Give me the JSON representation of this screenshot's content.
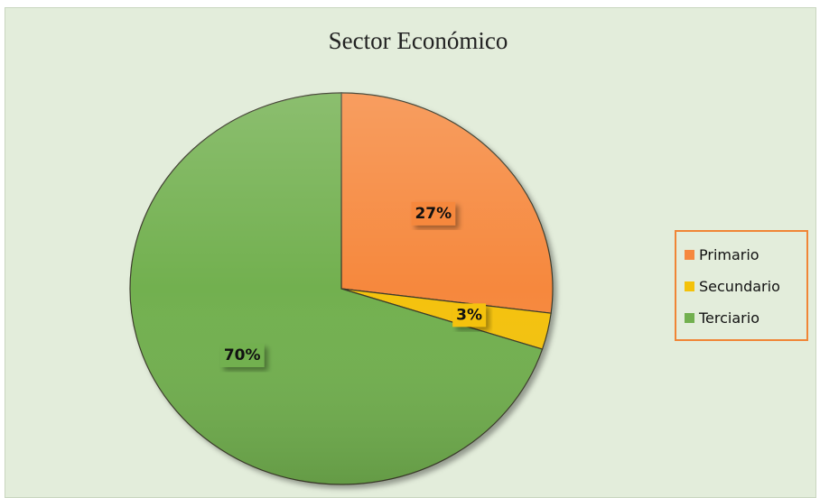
{
  "chart_data": {
    "type": "pie",
    "title": "Sector Económico",
    "categories": [
      "Primario",
      "Secundario",
      "Terciario"
    ],
    "values": [
      27,
      3,
      70
    ],
    "labels": [
      "27%",
      "3%",
      "70%"
    ],
    "colors": [
      "#f6883e",
      "#f4c20a",
      "#72b04f"
    ],
    "legend_position": "right"
  },
  "legend": {
    "items": [
      {
        "label": "Primario",
        "color": "#f6883e"
      },
      {
        "label": "Secundario",
        "color": "#f4c20a"
      },
      {
        "label": "Terciario",
        "color": "#72b04f"
      }
    ]
  }
}
